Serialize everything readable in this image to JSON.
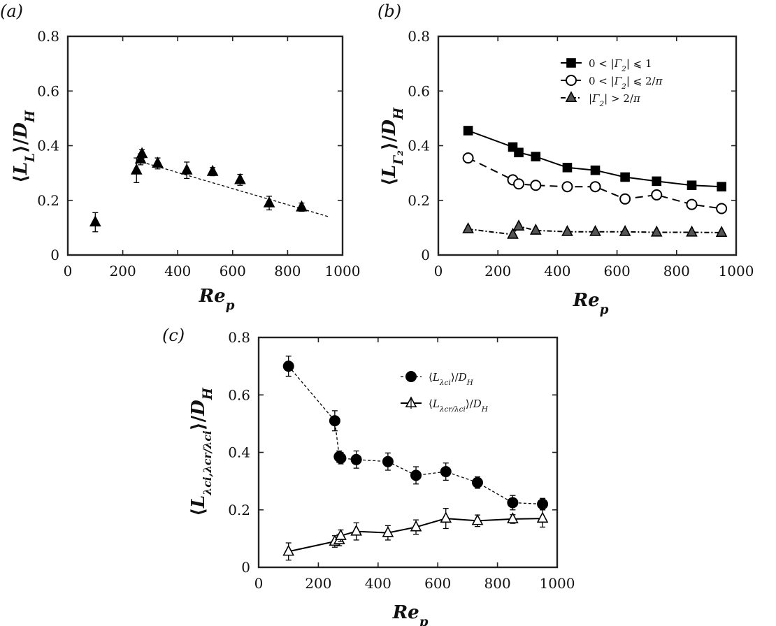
{
  "chart_data": [
    {
      "id": "a",
      "panel_label": "(a)",
      "type": "scatter",
      "xlabel": "Re_p",
      "ylabel": "⟨L_L⟩/D_H",
      "xlim": [
        0,
        1000
      ],
      "ylim": [
        0,
        0.8
      ],
      "xticks": [
        "0",
        "200",
        "400",
        "600",
        "800",
        "1000"
      ],
      "yticks": [
        "0",
        "0.2",
        "0.4",
        "0.6",
        "0.8"
      ],
      "series": [
        {
          "name": "L_L",
          "marker": "triangle",
          "fill": "#000000",
          "line": "none",
          "x": [
            100,
            250,
            265,
            270,
            327,
            433,
            527,
            627,
            733,
            851
          ],
          "y": [
            0.12,
            0.31,
            0.35,
            0.37,
            0.335,
            0.31,
            0.305,
            0.275,
            0.19,
            0.175
          ],
          "err": [
            0.035,
            0.045,
            0.02,
            0.015,
            0.02,
            0.03,
            0.015,
            0.02,
            0.025,
            0.015
          ]
        }
      ],
      "fit_line": {
        "x": [
          270,
          950
        ],
        "y": [
          0.34,
          0.14
        ]
      }
    },
    {
      "id": "b",
      "panel_label": "(b)",
      "type": "line",
      "xlabel": "Re_p",
      "ylabel": "⟨L_Γ2⟩/D_H",
      "xlim": [
        0,
        1000
      ],
      "ylim": [
        0,
        0.8
      ],
      "xticks": [
        "0",
        "200",
        "400",
        "600",
        "800",
        "1000"
      ],
      "yticks": [
        "0",
        "0.2",
        "0.4",
        "0.6",
        "0.8"
      ],
      "legend_position": "top-right",
      "series": [
        {
          "name": "0 < |Γ₂| ⩽ 1",
          "marker": "square",
          "fill": "#000000",
          "line": "solid",
          "x": [
            100,
            250,
            270,
            327,
            433,
            527,
            627,
            733,
            851,
            951
          ],
          "y": [
            0.455,
            0.395,
            0.375,
            0.36,
            0.32,
            0.31,
            0.285,
            0.27,
            0.255,
            0.25
          ]
        },
        {
          "name": "0 < |Γ₂| ⩽ 2/π",
          "marker": "circle",
          "fill": "#ffffff",
          "line": "dashed",
          "x": [
            100,
            250,
            270,
            327,
            433,
            527,
            627,
            733,
            851,
            951
          ],
          "y": [
            0.355,
            0.275,
            0.26,
            0.255,
            0.25,
            0.25,
            0.205,
            0.22,
            0.185,
            0.17
          ]
        },
        {
          "name": "|Γ₂| > 2/π",
          "marker": "triangle",
          "fill": "#555555",
          "line": "dashdot",
          "x": [
            100,
            250,
            270,
            327,
            433,
            527,
            627,
            733,
            851,
            951
          ],
          "y": [
            0.095,
            0.075,
            0.105,
            0.09,
            0.085,
            0.085,
            0.085,
            0.083,
            0.083,
            0.082
          ]
        }
      ]
    },
    {
      "id": "c",
      "panel_label": "(c)",
      "type": "line",
      "xlabel": "Re_p",
      "ylabel": "⟨L_λci,λcr/λci⟩/D_H",
      "xlim": [
        0,
        1000
      ],
      "ylim": [
        0,
        0.8
      ],
      "xticks": [
        "0",
        "200",
        "400",
        "600",
        "800",
        "1000"
      ],
      "yticks": [
        "0",
        "0.2",
        "0.4",
        "0.6",
        "0.8"
      ],
      "legend_position": "top-right",
      "series": [
        {
          "name": "⟨L_λci⟩/D_H",
          "marker": "circle",
          "fill": "#000000",
          "line": "dotted",
          "x": [
            100,
            255,
            270,
            275,
            327,
            433,
            527,
            627,
            733,
            851,
            951
          ],
          "y": [
            0.7,
            0.51,
            0.385,
            0.38,
            0.375,
            0.368,
            0.32,
            0.333,
            0.295,
            0.225,
            0.22
          ],
          "err": [
            0.035,
            0.035,
            0.02,
            0.02,
            0.03,
            0.03,
            0.03,
            0.03,
            0.02,
            0.025,
            0.02
          ]
        },
        {
          "name": "⟨L_λcr/λci⟩/D_H",
          "marker": "triangle",
          "fill": "#ffffff",
          "line": "solid",
          "x": [
            100,
            255,
            270,
            275,
            327,
            433,
            527,
            627,
            733,
            851,
            951
          ],
          "y": [
            0.055,
            0.09,
            0.095,
            0.11,
            0.125,
            0.12,
            0.14,
            0.17,
            0.162,
            0.168,
            0.17
          ],
          "err": [
            0.03,
            0.02,
            0.02,
            0.02,
            0.03,
            0.025,
            0.025,
            0.035,
            0.02,
            0.015,
            0.03
          ]
        }
      ]
    }
  ]
}
